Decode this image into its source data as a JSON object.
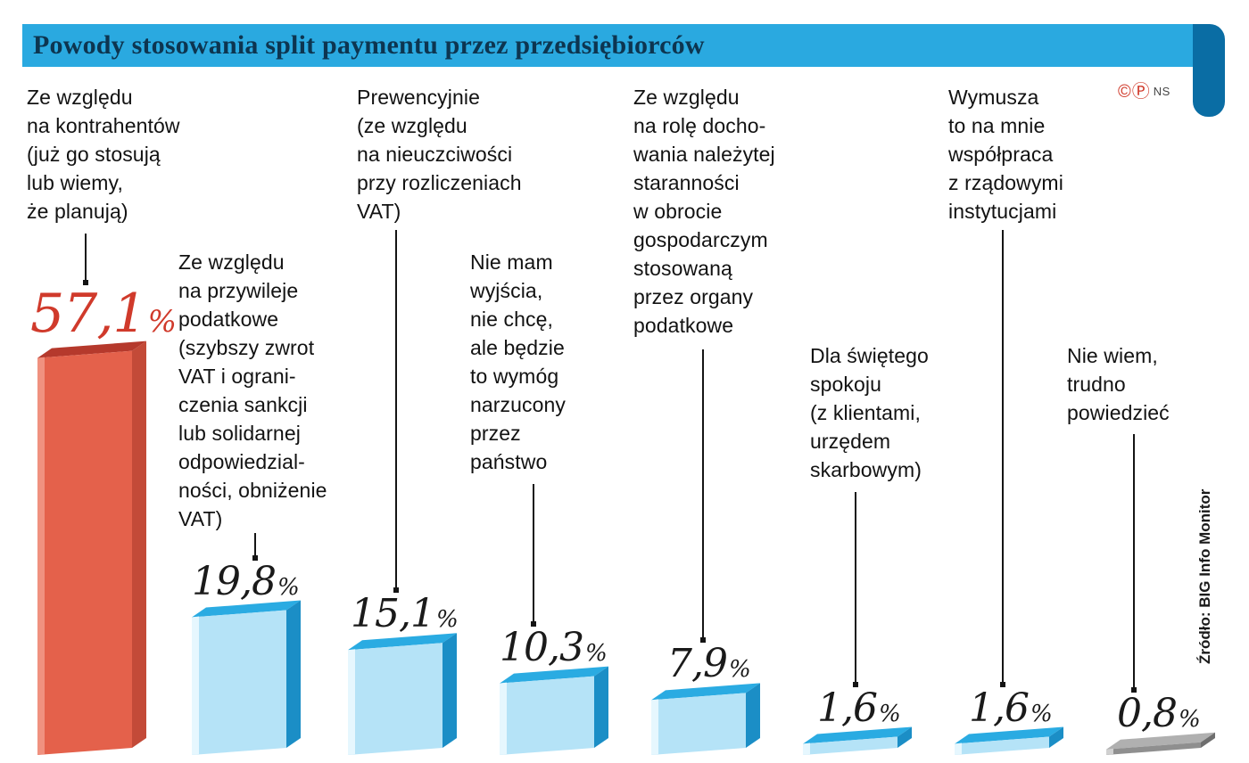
{
  "header": {
    "title": "Powody stosowania split paymentu przez przedsiębiorców",
    "background": "#2aa9e0",
    "text_color": "#0d3550",
    "ribbon_color": "#0a6da4"
  },
  "copyright": {
    "c": "©",
    "p": "Ⓟ",
    "ns": "NS"
  },
  "source": "Źródło: BIG Info Monitor",
  "chart_data": {
    "type": "bar",
    "title": "Powody stosowania split paymentu przez przedsiębiorców",
    "unit": "%",
    "ylim": [
      0,
      60
    ],
    "grid": false,
    "legend": "none",
    "categories": [
      "Ze względu na kontrahentów (już go stosują lub wiemy, że planują)",
      "Ze względu na przywileje podatkowe (szybszy zwrot VAT i ograniczenia sankcji lub solidarnej odpowiedzialności, obniżenie VAT)",
      "Prewencyjnie (ze względu na nieuczciwości przy rozliczeniach VAT)",
      "Nie mam wyjścia, nie chcę, ale będzie to wymóg narzucony przez państwo",
      "Ze względu na rolę dochowania należytej staranności w obrocie gospodarczym stosowaną przez organy podatkowe",
      "Dla świętego spokoju (z klientami, urzędem skarbowym)",
      "Wymusza to na mnie współpraca z rządowymi instytucjami",
      "Nie wiem, trudno powiedzieć"
    ],
    "values": [
      57.1,
      19.8,
      15.1,
      10.3,
      7.9,
      1.6,
      1.6,
      0.8
    ],
    "bars": [
      {
        "label": "Ze względu\nna kontrahentów\n(już go stosują\nlub wiemy,\nże planują)",
        "value": 57.1,
        "value_label": "57,1",
        "color": "red"
      },
      {
        "label": "Ze względu\nna przywileje\npodatkowe\n(szybszy zwrot\nVAT i ograni-\nczenia sankcji\nlub solidarnej\nodpowiedzial-\nności, obniżenie\nVAT)",
        "value": 19.8,
        "value_label": "19,8",
        "color": "blue"
      },
      {
        "label": "Prewencyjnie\n(ze względu\nna nieuczciwości\nprzy rozliczeniach\nVAT)",
        "value": 15.1,
        "value_label": "15,1",
        "color": "blue"
      },
      {
        "label": "Nie mam\nwyjścia,\nnie chcę,\nale będzie\nto wymóg\nnarzucony\nprzez\npaństwo",
        "value": 10.3,
        "value_label": "10,3",
        "color": "blue"
      },
      {
        "label": "Ze względu\nna rolę docho-\nwania należytej\nstaranności\nw obrocie\ngospodarczym\nstosowaną\nprzez organy\npodatkowe",
        "value": 7.9,
        "value_label": "7,9",
        "color": "blue"
      },
      {
        "label": "Dla świętego\nspokoju\n(z klientami,\nurzędem\nskarbowym)",
        "value": 1.6,
        "value_label": "1,6",
        "color": "blue"
      },
      {
        "label": "Wymusza\nto na mnie\nwspółpraca\nz rządowymi\ninstytucjami",
        "value": 1.6,
        "value_label": "1,6",
        "color": "blue"
      },
      {
        "label": "Nie wiem,\ntrudno\npowiedzieć",
        "value": 0.8,
        "value_label": "0,8",
        "color": "gray"
      }
    ],
    "palette": {
      "red": {
        "front": "#e4614b",
        "top": "#b5392c",
        "side": "#c34a38",
        "hi": "#f0917f",
        "num": "#d03a2b"
      },
      "blue": {
        "front": "#b5e3f7",
        "top": "#2aabe2",
        "side": "#1b8ec6",
        "hi": "#e6f7fe",
        "num": "#1a1a1a"
      },
      "gray": {
        "front": "#8f8f8f",
        "top": "#b0b0b0",
        "side": "#6e6e6e",
        "hi": "#d0d0d0",
        "num": "#1a1a1a"
      }
    },
    "source": "Źródło: BIG Info Monitor"
  }
}
